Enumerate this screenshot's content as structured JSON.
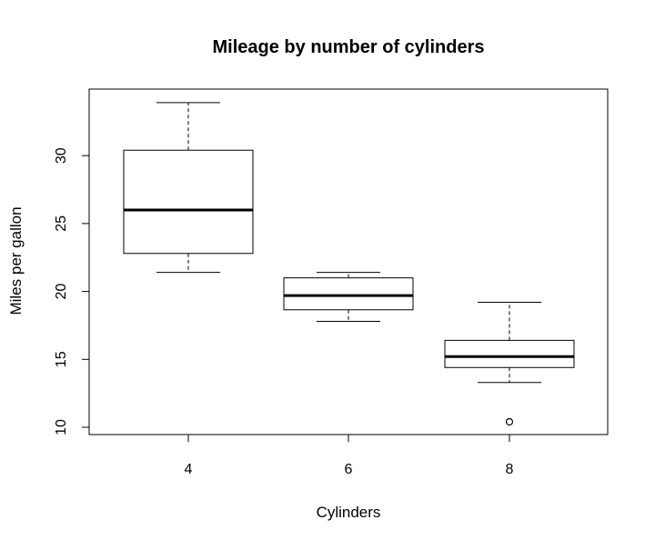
{
  "chart_data": {
    "type": "boxplot",
    "title": "Mileage by number of cylinders",
    "xlabel": "Cylinders",
    "ylabel": "Miles per gallon",
    "categories": [
      "4",
      "6",
      "8"
    ],
    "y_ticks": [
      10,
      15,
      20,
      25,
      30
    ],
    "ylim": [
      9.5,
      35.0
    ],
    "grid": false,
    "legend": "none",
    "boxes": [
      {
        "category": "4",
        "whisker_low": 21.4,
        "q1": 22.8,
        "median": 26.0,
        "q3": 30.4,
        "whisker_high": 33.9,
        "outliers": []
      },
      {
        "category": "6",
        "whisker_low": 17.8,
        "q1": 18.65,
        "median": 19.7,
        "q3": 21.0,
        "whisker_high": 21.4,
        "outliers": []
      },
      {
        "category": "8",
        "whisker_low": 13.3,
        "q1": 14.4,
        "median": 15.2,
        "q3": 16.4,
        "whisker_high": 19.2,
        "outliers": [
          10.4
        ]
      }
    ],
    "colors": {
      "stroke": "#000000",
      "box_fill": "#ffffff"
    }
  }
}
